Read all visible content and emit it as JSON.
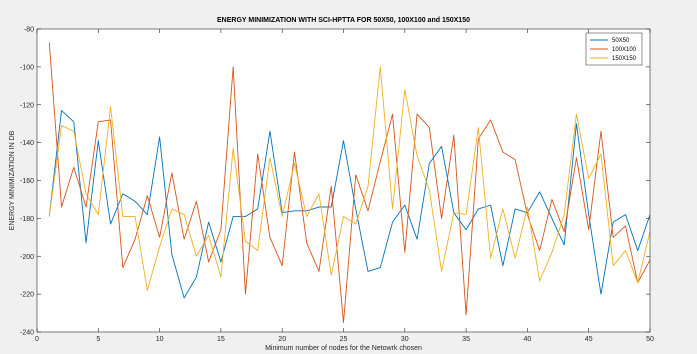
{
  "chart_data": {
    "type": "line",
    "title": "ENERGY MINIMIZATION WITH SCI-HPTTA FOR 50X50, 100X100 and 150X150",
    "xlabel": "Minimum number of nodes for the Netowrk chosen",
    "ylabel": "ENERGY MINIMIZATION IN DB",
    "xlim": [
      0,
      50
    ],
    "ylim": [
      -240,
      -80
    ],
    "xticks": [
      0,
      5,
      10,
      15,
      20,
      25,
      30,
      35,
      40,
      45,
      50
    ],
    "yticks": [
      -80,
      -100,
      -120,
      -140,
      -160,
      -180,
      -200,
      -220,
      -240
    ],
    "grid": false,
    "legend_position": "top-right",
    "x": [
      1,
      2,
      3,
      4,
      5,
      6,
      7,
      8,
      9,
      10,
      11,
      12,
      13,
      14,
      15,
      16,
      17,
      18,
      19,
      20,
      21,
      22,
      23,
      24,
      25,
      26,
      27,
      28,
      29,
      30,
      31,
      32,
      33,
      34,
      35,
      36,
      37,
      38,
      39,
      40,
      41,
      42,
      43,
      44,
      45,
      46,
      47,
      48,
      49,
      50
    ],
    "series": [
      {
        "name": "50X50",
        "color": "#0072bd",
        "values": [
          -179,
          -123,
          -129,
          -193,
          -139,
          -183,
          -167,
          -171,
          -178,
          -137,
          -199,
          -222,
          -211,
          -182,
          -203,
          -179,
          -179,
          -175,
          -134,
          -177,
          -176,
          -176,
          -174,
          -174,
          -139,
          -175,
          -208,
          -206,
          -182,
          -173,
          -191,
          -151,
          -142,
          -177,
          -186,
          -175,
          -173,
          -205,
          -175,
          -177,
          -166,
          -180,
          -194,
          -130,
          -178,
          -220,
          -182,
          -178,
          -197,
          -178
        ]
      },
      {
        "name": "100X100",
        "color": "#d95319",
        "values": [
          -87,
          -174,
          -153,
          -174,
          -129,
          -128,
          -206,
          -191,
          -168,
          -190,
          -156,
          -191,
          -171,
          -203,
          -186,
          -100,
          -220,
          -146,
          -190,
          -205,
          -145,
          -193,
          -208,
          -163,
          -235,
          -157,
          -176,
          -150,
          -125,
          -198,
          -125,
          -132,
          -180,
          -136,
          -231,
          -138,
          -128,
          -145,
          -149,
          -178,
          -197,
          -170,
          -187,
          -148,
          -186,
          -134,
          -190,
          -184,
          -214,
          -202
        ]
      },
      {
        "name": "150X150",
        "color": "#edb120",
        "values": [
          -179,
          -131,
          -134,
          -167,
          -178,
          -121,
          -179,
          -179,
          -218,
          -195,
          -175,
          -178,
          -200,
          -189,
          -211,
          -143,
          -192,
          -197,
          -148,
          -179,
          -151,
          -179,
          -167,
          -210,
          -179,
          -183,
          -163,
          -100,
          -175,
          -112,
          -147,
          -165,
          -208,
          -177,
          -178,
          -132,
          -201,
          -175,
          -201,
          -174,
          -213,
          -198,
          -178,
          -125,
          -159,
          -146,
          -205,
          -197,
          -214,
          -187
        ]
      }
    ]
  }
}
